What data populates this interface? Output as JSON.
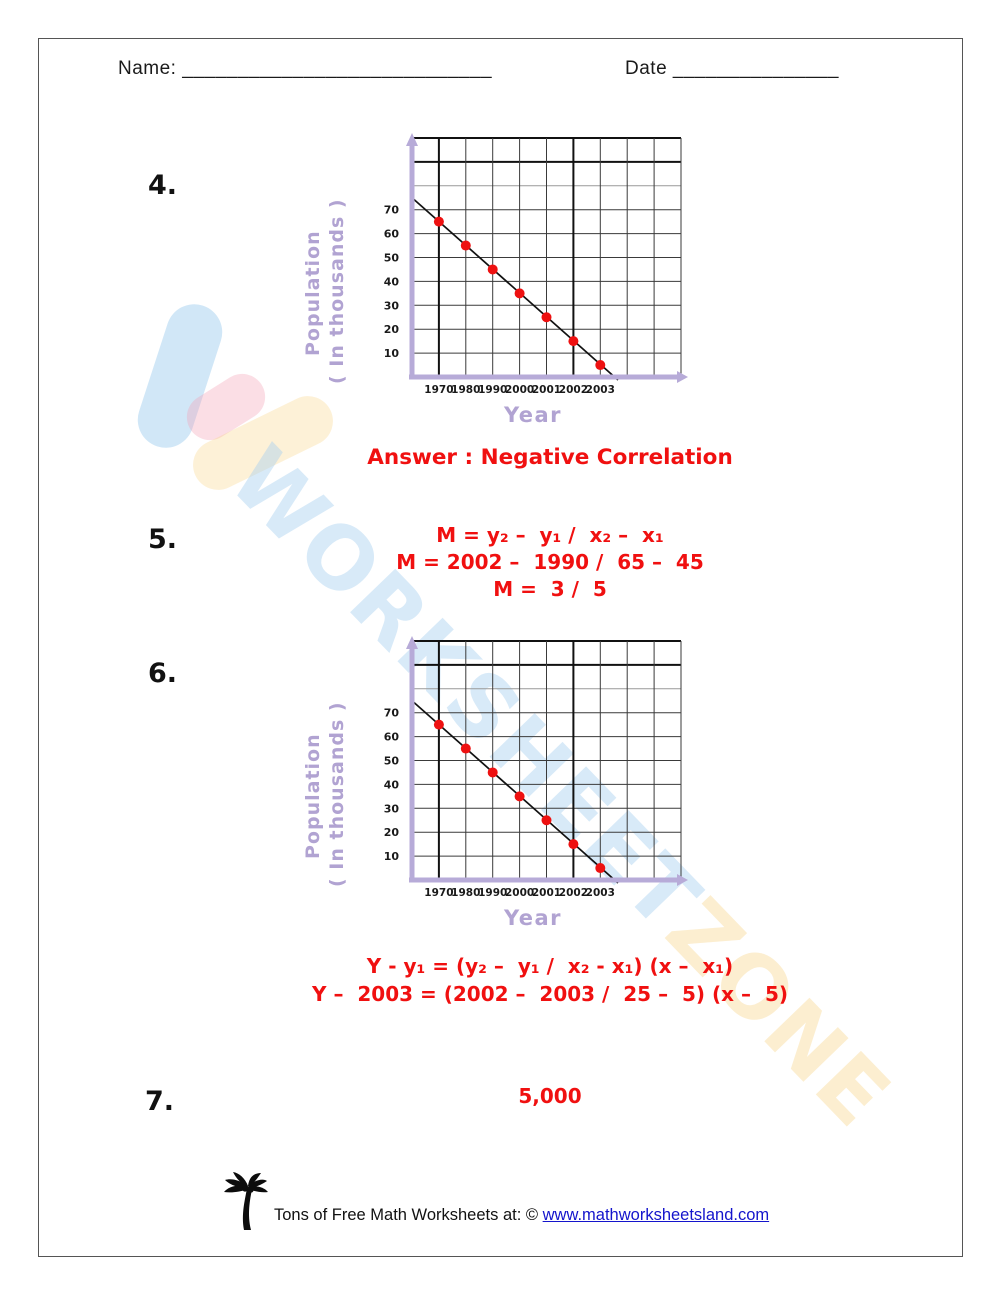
{
  "header": {
    "name_label": "Name:",
    "name_line": "____________________________",
    "date_label": "Date",
    "date_line": "_______________"
  },
  "questions": {
    "q4": {
      "number": "4.",
      "answer": "Answer : Negative Correlation"
    },
    "q5": {
      "number": "5.",
      "lines": [
        "M = y₂ –  y₁ /  x₂ –  x₁",
        "M = 2002 –  1990 /  65 –  45",
        "M =  3 /  5"
      ]
    },
    "q6": {
      "number": "6.",
      "lines": [
        "Y - y₁ = (y₂ –  y₁ /  x₂ - x₁) (x –  x₁)",
        "Y –  2003 = (2002 –  2003 /  25 –  5) (x –  5)"
      ]
    },
    "q7": {
      "number": "7.",
      "answer": "5,000"
    }
  },
  "chart_data": [
    {
      "type": "scatter",
      "x_categories": [
        "1970",
        "1980",
        "1990",
        "2000",
        "2001",
        "2002",
        "2003"
      ],
      "values": [
        65,
        55,
        45,
        35,
        25,
        15,
        5
      ],
      "yticks": [
        70,
        60,
        50,
        40,
        30,
        20,
        10
      ],
      "xlabel": "Year",
      "ylabel_line1": "Population",
      "ylabel_line2": "( In thousands )",
      "trend": "negative-linear",
      "grid": "on",
      "grid_cols": 10,
      "grid_rows": 10,
      "point_color": "#ee1111",
      "axis_color": "#b7abd8",
      "label_color": "#b1a3d2"
    },
    {
      "type": "scatter",
      "x_categories": [
        "1970",
        "1980",
        "1990",
        "2000",
        "2001",
        "2002",
        "2003"
      ],
      "values": [
        65,
        55,
        45,
        35,
        25,
        15,
        5
      ],
      "yticks": [
        70,
        60,
        50,
        40,
        30,
        20,
        10
      ],
      "xlabel": "Year",
      "ylabel_line1": "Population",
      "ylabel_line2": "( In thousands )",
      "trend": "negative-linear",
      "grid": "on",
      "grid_cols": 10,
      "grid_rows": 10,
      "point_color": "#ee1111",
      "axis_color": "#b7abd8",
      "label_color": "#b1a3d2"
    }
  ],
  "watermark": {
    "text_primary": "WORKSHEET",
    "text_secondary": "ZONE"
  },
  "footer": {
    "text": "Tons of Free Math Worksheets at: © ",
    "link": "www.mathworksheetsland.com"
  }
}
